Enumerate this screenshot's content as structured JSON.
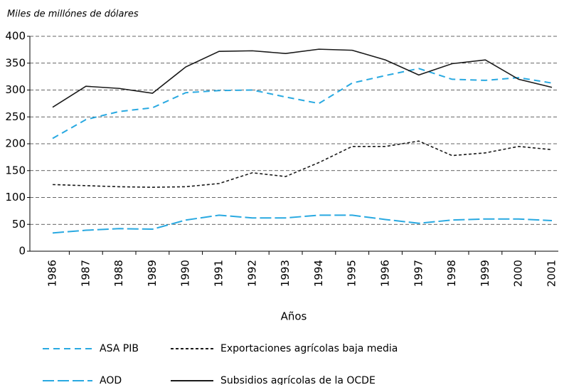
{
  "chart_data": {
    "type": "line",
    "y_axis_label": "Miles de millónes de dólares",
    "x_axis_label": "Años",
    "categories": [
      "1986",
      "1987",
      "1988",
      "1989",
      "1990",
      "1991",
      "1992",
      "1993",
      "1994",
      "1995",
      "1996",
      "1997",
      "1998",
      "1999",
      "2000",
      "2001"
    ],
    "series": [
      {
        "name": "ASA PIB",
        "color": "#29a9e1",
        "style": "dashed",
        "values": [
          210,
          245,
          260,
          267,
          295,
          299,
          300,
          287,
          275,
          313,
          327,
          340,
          320,
          318,
          323,
          313
        ]
      },
      {
        "name": "Exportaciones agrícolas baja media",
        "color": "#1a1a1a",
        "style": "dotted",
        "values": [
          124,
          122,
          120,
          119,
          120,
          126,
          146,
          139,
          165,
          195,
          195,
          205,
          178,
          183,
          195,
          189
        ]
      },
      {
        "name": "AOD",
        "color": "#29a9e1",
        "style": "longdash",
        "values": [
          34,
          39,
          42,
          41,
          58,
          67,
          62,
          62,
          67,
          67,
          59,
          52,
          58,
          60,
          60,
          57
        ]
      },
      {
        "name": "Subsidios agrícolas de la OCDE",
        "color": "#1a1a1a",
        "style": "solid",
        "values": [
          268,
          307,
          303,
          294,
          343,
          372,
          373,
          368,
          376,
          374,
          356,
          328,
          349,
          356,
          320,
          305
        ]
      }
    ],
    "ylim": [
      0,
      400
    ],
    "yticks": [
      0,
      50,
      100,
      150,
      200,
      250,
      300,
      350,
      400
    ],
    "grid": true
  }
}
